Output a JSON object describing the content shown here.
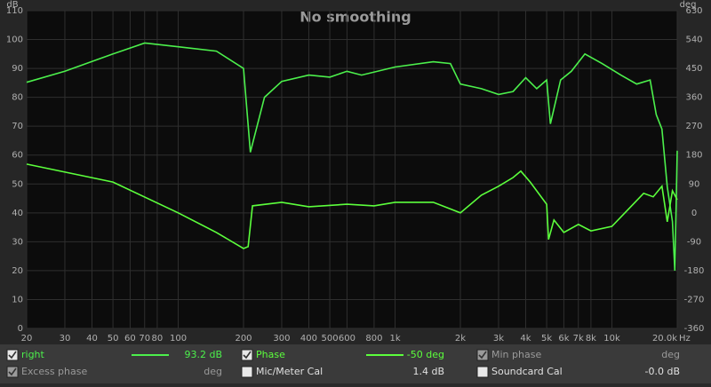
{
  "chart_data": {
    "type": "line",
    "title": "No smoothing",
    "y_label": "dB",
    "y2_label": "deg",
    "x_unit": "Hz",
    "xscale": "log",
    "xlim": [
      20,
      20000
    ],
    "xticks": [
      20,
      30,
      40,
      50,
      60,
      70,
      80,
      100,
      200,
      300,
      400,
      500,
      600,
      800,
      {
        "value": 1000,
        "label": "1k"
      },
      {
        "value": 2000,
        "label": "2k"
      },
      {
        "value": 3000,
        "label": "3k"
      },
      {
        "value": 4000,
        "label": "4k"
      },
      {
        "value": 5000,
        "label": "5k"
      },
      {
        "value": 6000,
        "label": "6k"
      },
      {
        "value": 7000,
        "label": "7k"
      },
      {
        "value": 8000,
        "label": "8k"
      },
      {
        "value": 10000,
        "label": "10k"
      },
      {
        "value": 20000,
        "label": "20.0k"
      }
    ],
    "ylim": [
      0,
      110
    ],
    "yticks": [
      0,
      10,
      20,
      30,
      40,
      50,
      60,
      70,
      80,
      90,
      100,
      110
    ],
    "y2lim": [
      -360,
      630
    ],
    "y2ticks": [
      -360,
      -270,
      -180,
      -90,
      0,
      90,
      180,
      270,
      360,
      450,
      540,
      630
    ],
    "grid": true,
    "series": [
      {
        "name": "right",
        "color": "#4cf04c",
        "readout": "93.2 dB",
        "checked": true,
        "x": [
          20,
          30,
          50,
          70,
          100,
          150,
          200,
          215,
          250,
          300,
          400,
          500,
          600,
          700,
          1000,
          1500,
          1800,
          2000,
          2500,
          3000,
          3500,
          4000,
          4500,
          5000,
          5200,
          5800,
          6500,
          7500,
          9000,
          11000,
          13000,
          15000,
          16000,
          17000,
          18000,
          19000,
          19500,
          20000
        ],
        "values": [
          85.2,
          89,
          95,
          98.8,
          97.5,
          96,
          90,
          61,
          80,
          85.5,
          87.7,
          87,
          89,
          87.7,
          90.5,
          92.3,
          91.7,
          84.6,
          83,
          81,
          82,
          86.8,
          83,
          86,
          70.8,
          86,
          89,
          95,
          91.7,
          87.7,
          84.6,
          86,
          74,
          69,
          49,
          37,
          20,
          61.5
        ]
      },
      {
        "name": "Phase",
        "color": "#5cff3c",
        "axis": "y2",
        "readout": "-50 deg",
        "checked": true,
        "x": [
          20,
          50,
          100,
          150,
          200,
          210,
          220,
          300,
          400,
          600,
          800,
          1000,
          1500,
          2000,
          2500,
          3000,
          3500,
          3800,
          4200,
          5000,
          5100,
          5400,
          6000,
          7000,
          8000,
          10000,
          12000,
          14000,
          15500,
          17000,
          18000,
          19000,
          20000
        ],
        "values": [
          152,
          96,
          0,
          -61,
          -111,
          -105,
          22,
          33,
          19,
          27,
          22,
          33,
          33,
          0,
          55,
          83,
          110,
          130,
          96,
          27,
          -83,
          -22,
          -61,
          -36,
          -56,
          -42,
          14,
          61,
          50,
          83,
          -28,
          69,
          41
        ]
      }
    ]
  },
  "panel": [
    {
      "label": "Min phase",
      "readout": "deg",
      "checked": true
    },
    {
      "label": "Excess phase",
      "readout": "deg",
      "checked": true
    },
    {
      "label": "Mic/Meter Cal",
      "readout": "1.4 dB",
      "checked": false
    },
    {
      "label": "Soundcard Cal",
      "readout": "-0.0 dB",
      "checked": false
    }
  ]
}
